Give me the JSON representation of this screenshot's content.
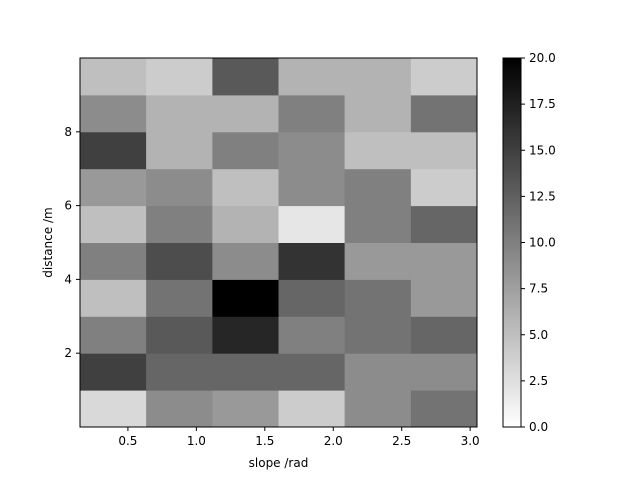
{
  "chart_data": {
    "type": "heatmap",
    "title": "",
    "xlabel": "slope /rad",
    "ylabel": "distance /m",
    "x_range": [
      0.15,
      3.05
    ],
    "y_range": [
      0,
      10
    ],
    "x_edges": [
      0.15,
      0.633,
      1.117,
      1.6,
      2.083,
      2.567,
      3.05
    ],
    "y_edges": [
      0,
      1,
      2,
      3,
      4,
      5,
      6,
      7,
      8,
      9,
      10
    ],
    "x_ticks": [
      0.5,
      1.0,
      1.5,
      2.0,
      2.5,
      3.0
    ],
    "x_tick_labels": [
      "0.5",
      "1.0",
      "1.5",
      "2.0",
      "2.5",
      "3.0"
    ],
    "y_ticks": [
      2,
      4,
      6,
      8
    ],
    "y_tick_labels": [
      "2",
      "4",
      "6",
      "8"
    ],
    "values_bottom_to_top": [
      [
        3,
        9,
        8,
        4,
        9,
        11
      ],
      [
        15,
        12,
        12,
        12,
        9,
        9
      ],
      [
        10,
        13,
        17,
        10,
        11,
        12
      ],
      [
        5,
        11,
        20,
        12,
        11,
        8
      ],
      [
        10,
        14,
        9,
        16,
        8,
        8
      ],
      [
        5,
        10,
        6,
        2,
        10,
        12
      ],
      [
        8,
        9,
        5,
        9,
        10,
        4
      ],
      [
        15,
        6,
        10,
        9,
        5,
        5
      ],
      [
        9,
        6,
        6,
        10,
        6,
        11
      ],
      [
        5,
        4,
        13,
        6,
        6,
        4
      ]
    ],
    "colormap": "Greys",
    "colorbar": {
      "vmin": 0,
      "vmax": 20,
      "ticks": [
        0,
        2.5,
        5,
        7.5,
        10,
        12.5,
        15,
        17.5,
        20
      ],
      "tick_labels": [
        "0.0",
        "2.5",
        "5.0",
        "7.5",
        "10.0",
        "12.5",
        "15.0",
        "17.5",
        "20.0"
      ]
    },
    "grid": false
  }
}
